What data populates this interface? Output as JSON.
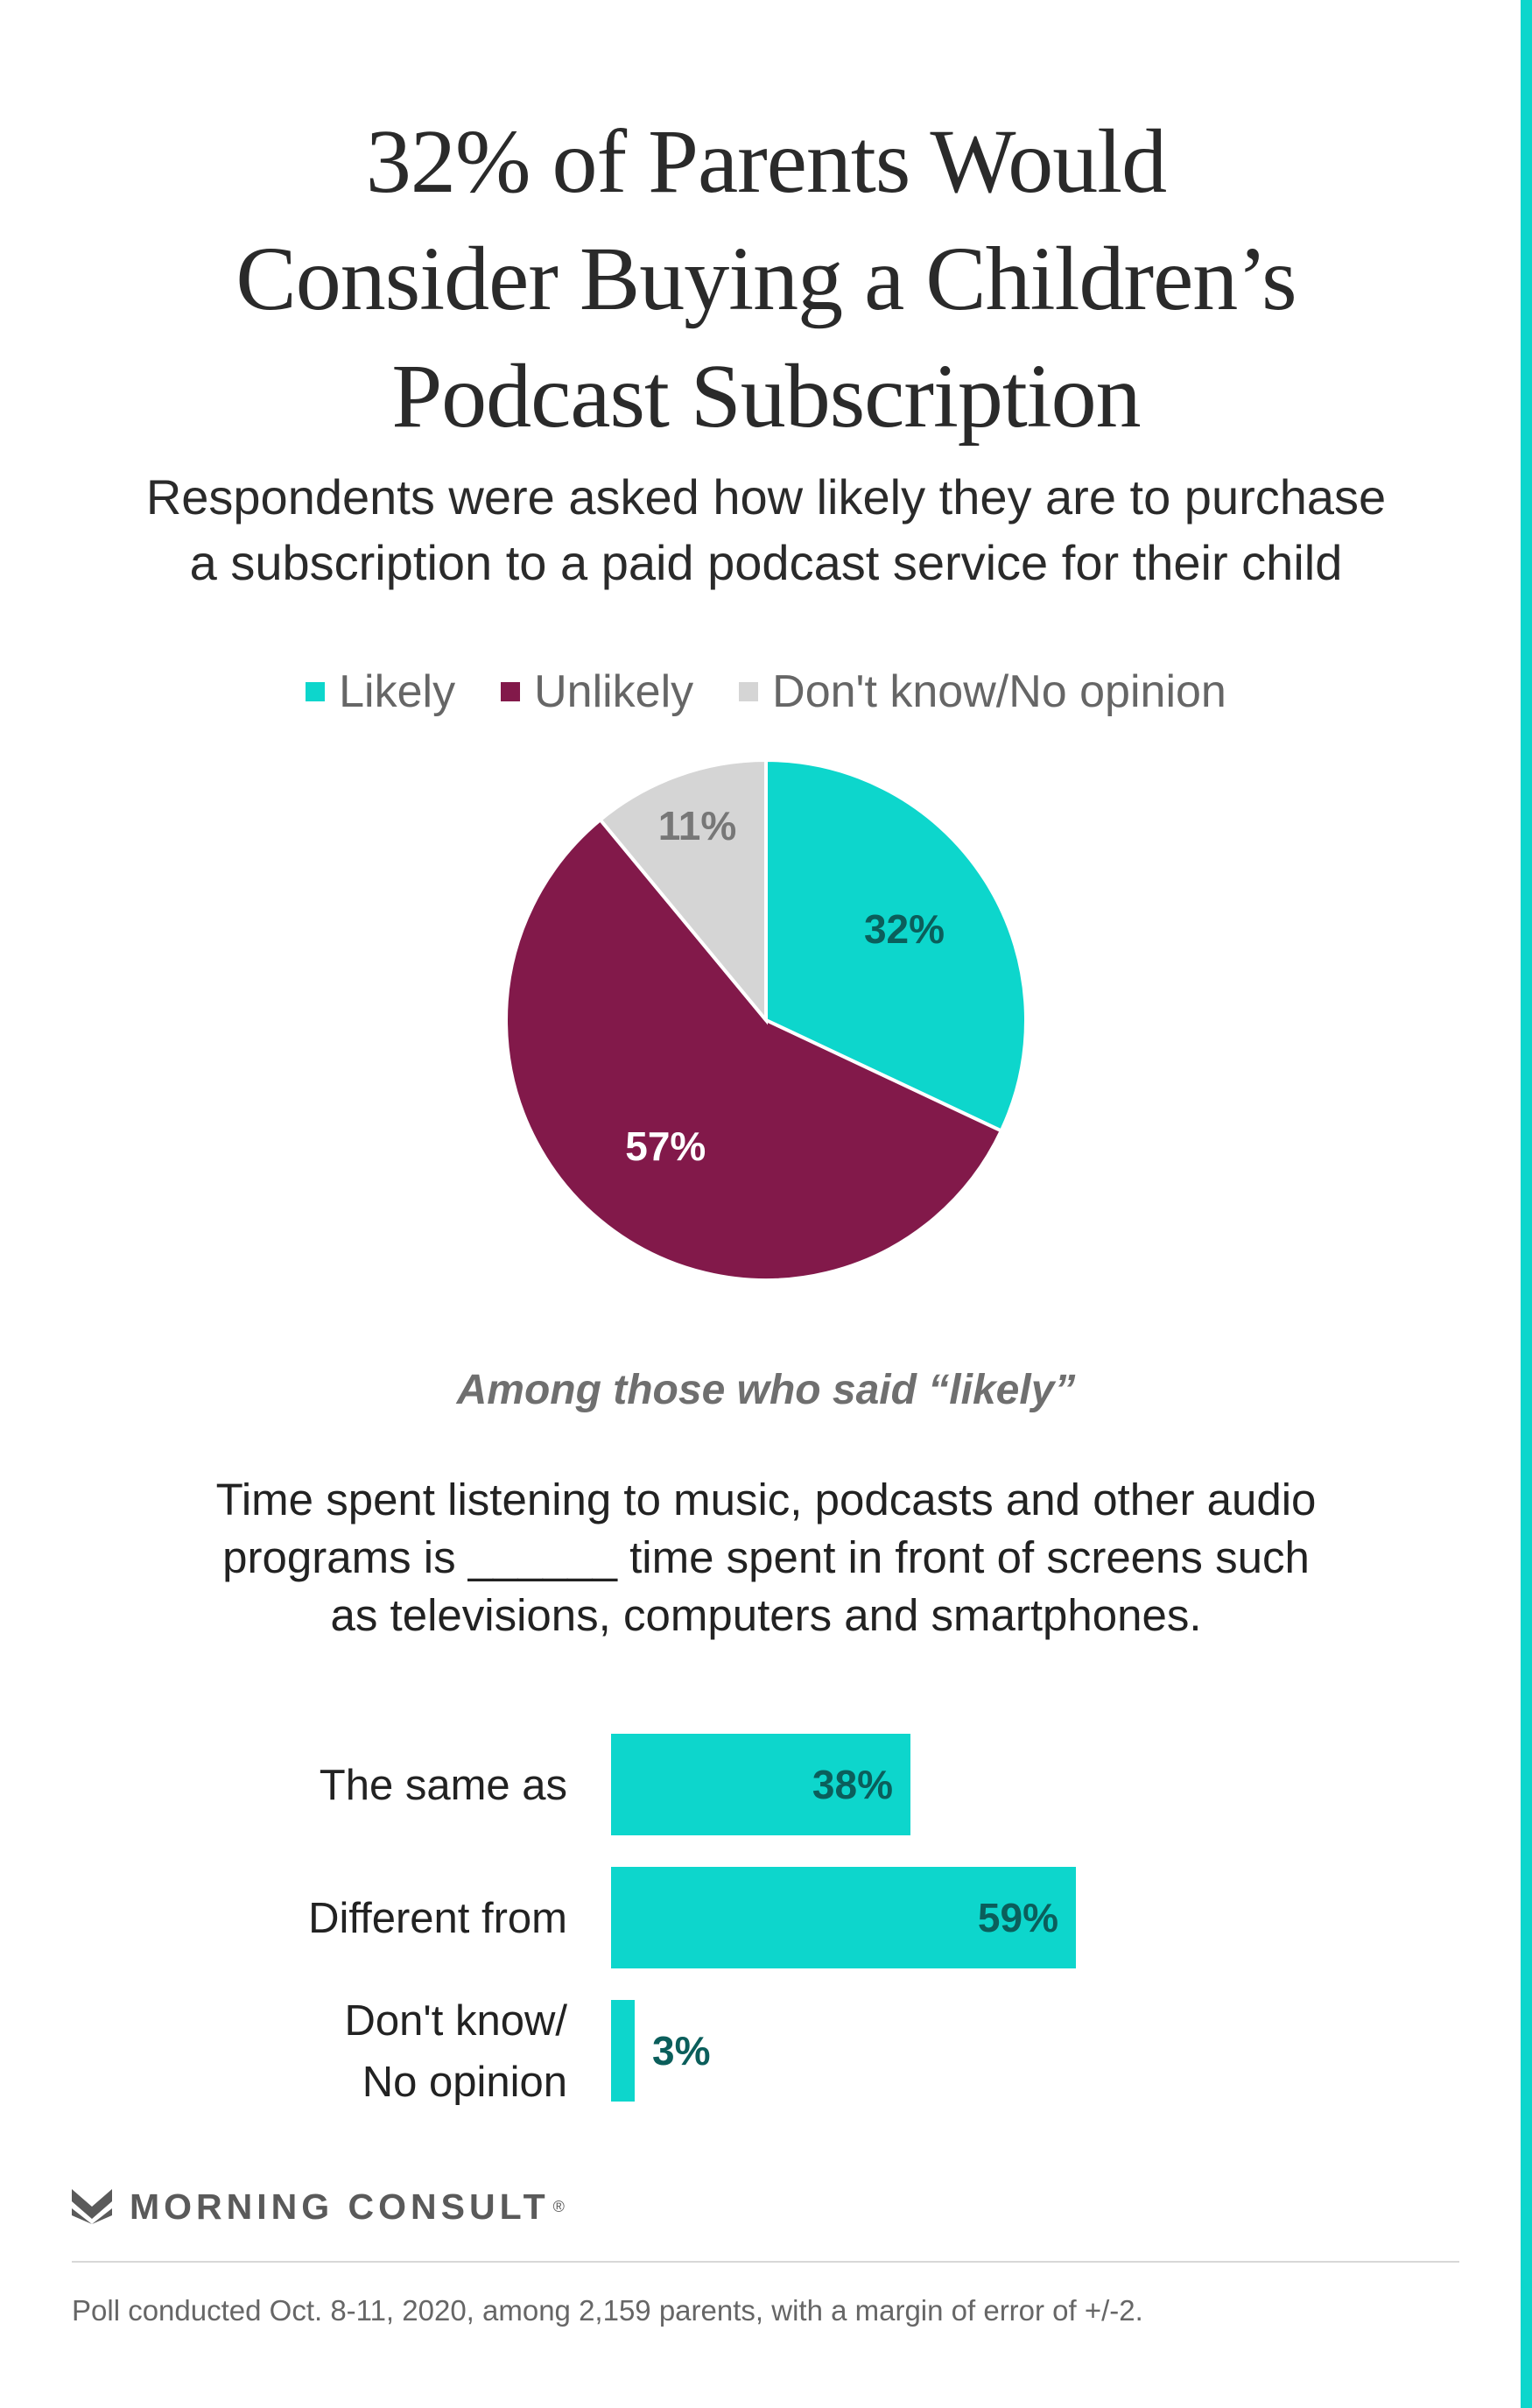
{
  "title_lines": [
    "32% of Parents Would",
    "Consider Buying a Children’s",
    "Podcast Subscription"
  ],
  "subtitle_lines": [
    "Respondents were asked how likely they are to purchase",
    "a subscription to a paid podcast service for their child"
  ],
  "colors": {
    "likely": "#0dd6cc",
    "unlikely": "#82194a",
    "dont_know": "#d5d5d5",
    "accent": "#0dd6cc"
  },
  "legend": [
    {
      "label": "Likely",
      "color": "#0dd6cc"
    },
    {
      "label": "Unlikely",
      "color": "#82194a"
    },
    {
      "label": "Don't know/No opinion",
      "color": "#d5d5d5"
    }
  ],
  "among_label": "Among those who said “likely”",
  "question_lines": [
    "Time spent listening to music, podcasts and other audio",
    "programs is ______ time spent in front of screens such",
    "as televisions, computers and smartphones."
  ],
  "brand": "MORNING CONSULT",
  "brand_mark": "®",
  "footnote": "Poll conducted Oct. 8-11, 2020, among 2,159 parents, with a margin of error of +/-2.",
  "chart_data": [
    {
      "type": "pie",
      "title": "",
      "categories": [
        "Likely",
        "Unlikely",
        "Don't know/No opinion"
      ],
      "values": [
        32,
        57,
        11
      ],
      "labels": [
        "32%",
        "57%",
        "11%"
      ],
      "label_colors": [
        "#0b5e5b",
        "#ffffff",
        "#777777"
      ],
      "colors": [
        "#0dd6cc",
        "#82194a",
        "#d5d5d5"
      ],
      "legend_position": "top"
    },
    {
      "type": "bar",
      "orientation": "horizontal",
      "categories": [
        [
          "The same as"
        ],
        [
          "Different from"
        ],
        [
          "Don't know/",
          "No opinion"
        ]
      ],
      "values": [
        38,
        59,
        3
      ],
      "labels": [
        "38%",
        "59%",
        "3%"
      ],
      "xlim": [
        0,
        100
      ],
      "color": "#0dd6cc"
    }
  ]
}
